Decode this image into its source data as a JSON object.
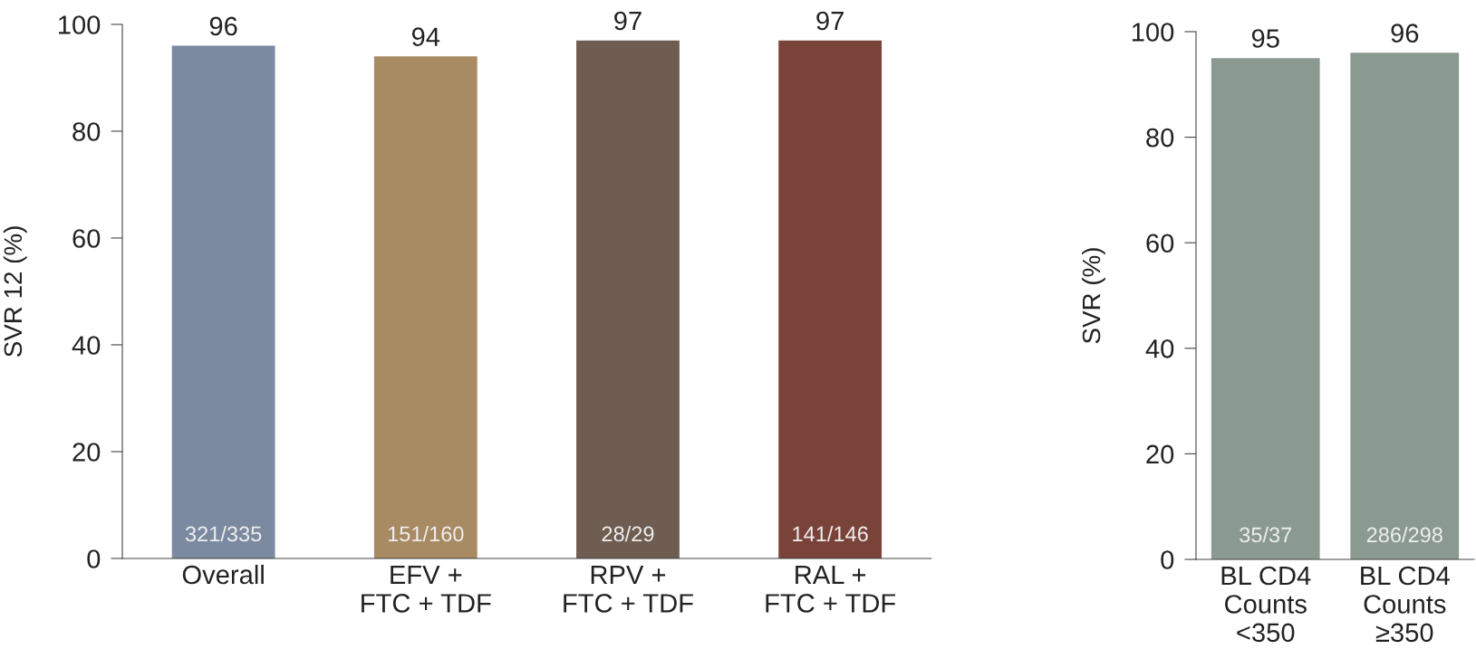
{
  "chart_data": [
    {
      "type": "bar",
      "ylabel": "SVR 12 (%)",
      "categories": [
        "Overall",
        "EFV +\nFTC + TDF",
        "RPV +\nFTC + TDF",
        "RAL +\nFTC + TDF"
      ],
      "values": [
        96,
        94,
        97,
        97
      ],
      "colors": [
        "#7b8aa0",
        "#a88a63",
        "#6f5d52",
        "#7a433a"
      ],
      "ylim": [
        0,
        100
      ],
      "yticks": [
        0,
        20,
        40,
        60,
        80,
        100
      ],
      "data_labels": true,
      "grid": false,
      "annotations": [
        "321/335",
        "151/160",
        "28/29",
        "141/146"
      ]
    },
    {
      "type": "bar",
      "ylabel": "SVR (%)",
      "categories": [
        "BL CD4\nCounts\n<350",
        "BL CD4\nCounts\n≥350"
      ],
      "values": [
        95,
        96
      ],
      "colors": [
        "#8a9a90",
        "#8a9a90"
      ],
      "ylim": [
        0,
        100
      ],
      "yticks": [
        0,
        20,
        40,
        60,
        80,
        100
      ],
      "data_labels": true,
      "grid": false,
      "annotations": [
        "35/37",
        "286/298"
      ]
    }
  ]
}
